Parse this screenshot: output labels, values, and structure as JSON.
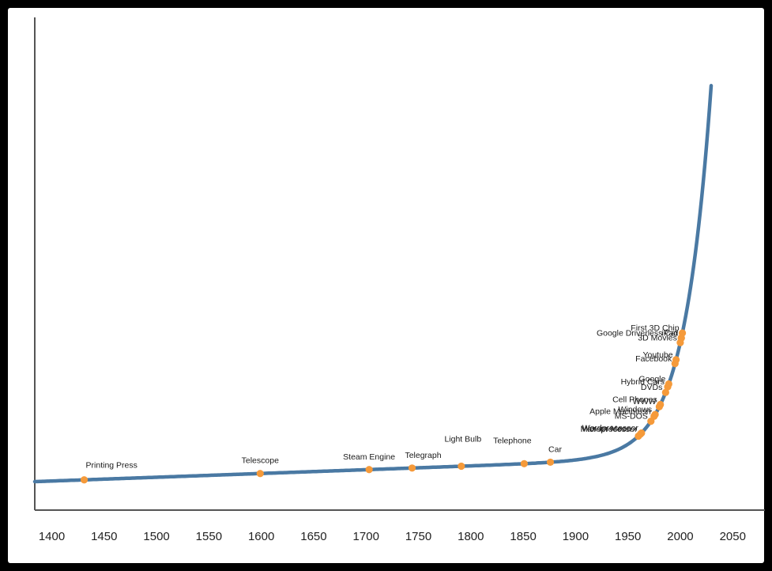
{
  "colors": {
    "curve": "#4a79a3",
    "dot": "#f59a3a",
    "axis": "#555555",
    "background": "#ffffff",
    "frame": "#000000"
  },
  "chart_data": {
    "type": "line",
    "title": "",
    "xlabel": "",
    "ylabel": "",
    "xlim": [
      1385,
      2075
    ],
    "grid": false,
    "x_ticks": [
      "1400",
      "1450",
      "1500",
      "1550",
      "1600",
      "1650",
      "1700",
      "1750",
      "1800",
      "1850",
      "1900",
      "1950",
      "2000",
      "2050"
    ],
    "events": [
      {
        "label": "Printing Press",
        "year": 1440
      },
      {
        "label": "Telescope",
        "year": 1608
      },
      {
        "label": "Steam Engine",
        "year": 1712
      },
      {
        "label": "Telegraph",
        "year": 1753
      },
      {
        "label": "Light Bulb",
        "year": 1800
      },
      {
        "label": "Telephone",
        "year": 1860
      },
      {
        "label": "Car",
        "year": 1885
      },
      {
        "label": "Man on Moon",
        "year": 1969
      },
      {
        "label": "Microprocessor",
        "year": 1971
      },
      {
        "label": "Wordprecessor",
        "year": 1972
      },
      {
        "label": "MS-DOS",
        "year": 1981
      },
      {
        "label": "Apple Macintosh",
        "year": 1984
      },
      {
        "label": "Windows",
        "year": 1985
      },
      {
        "label": "WWW",
        "year": 1989
      },
      {
        "label": "Cell Phones",
        "year": 1990
      },
      {
        "label": "DVDs",
        "year": 1995
      },
      {
        "label": "Hybrid Cars",
        "year": 1997
      },
      {
        "label": "Google",
        "year": 1998
      },
      {
        "label": "Youtube",
        "year": 2005
      },
      {
        "label": "Facebook",
        "year": 2004
      },
      {
        "label": "iPad",
        "year": 2010
      },
      {
        "label": "Google Driverless Car",
        "year": 2010
      },
      {
        "label": "3D Movies",
        "year": 2009
      },
      {
        "label": "First 3D Chip",
        "year": 2011
      }
    ]
  }
}
